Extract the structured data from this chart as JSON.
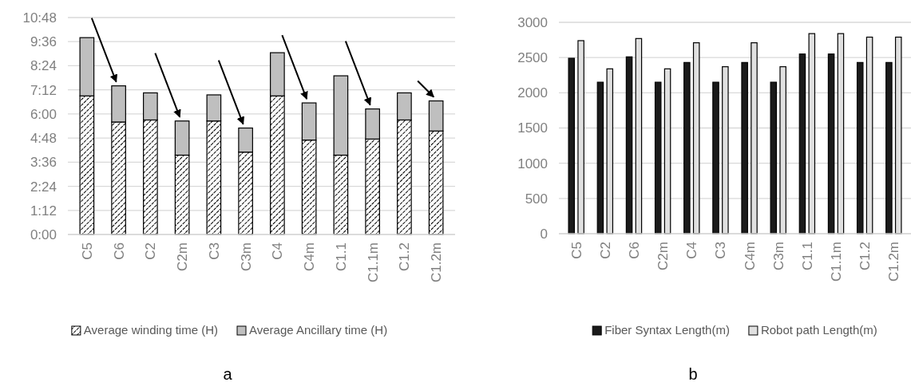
{
  "chart_data": [
    {
      "type": "bar",
      "stacked": true,
      "categories": [
        "C5",
        "C6",
        "C2",
        "C2m",
        "C3",
        "C3m",
        "C4",
        "C4m",
        "C1.1",
        "C1.1m",
        "C1.2",
        "C1.2m"
      ],
      "series": [
        {
          "name": "Average winding time (H)",
          "color": "#000000",
          "values": [
            6.9,
            5.6,
            5.7,
            3.95,
            5.65,
            4.1,
            6.9,
            4.7,
            3.95,
            4.75,
            5.7,
            5.15
          ]
        },
        {
          "name": "Average Ancillary time (H)",
          "color": "#bfbfbf",
          "values": [
            2.9,
            1.8,
            1.35,
            1.7,
            1.3,
            1.2,
            2.15,
            1.85,
            3.95,
            1.5,
            1.35,
            1.5
          ]
        }
      ],
      "ylim": [
        0,
        10.8
      ],
      "yticks": [
        {
          "value": 0,
          "label": "0:00"
        },
        {
          "value": 1.2,
          "label": "1:12"
        },
        {
          "value": 2.4,
          "label": "2:24"
        },
        {
          "value": 3.6,
          "label": "3:36"
        },
        {
          "value": 4.8,
          "label": "4:48"
        },
        {
          "value": 6,
          "label": "6:00"
        },
        {
          "value": 7.2,
          "label": "7:12"
        },
        {
          "value": 8.4,
          "label": "8:24"
        },
        {
          "value": 9.6,
          "label": "9:36"
        },
        {
          "value": 10.8,
          "label": "10:48"
        }
      ],
      "grid": "y",
      "legend": "bottom",
      "annotations": [
        "a"
      ]
    },
    {
      "type": "bar",
      "categories": [
        "C5",
        "C2",
        "C6",
        "C2m",
        "C4",
        "C3",
        "C4m",
        "C3m",
        "C1.1",
        "C1.1m",
        "C1.2",
        "C1.2m"
      ],
      "series": [
        {
          "name": "Fiber Syntax Length(m)",
          "color": "#1a1a1a",
          "values": [
            2490,
            2150,
            2510,
            2150,
            2430,
            2150,
            2430,
            2150,
            2550,
            2550,
            2430,
            2430
          ]
        },
        {
          "name": "Robot path Length(m)",
          "color": "#e0e0e0",
          "values": [
            2740,
            2340,
            2770,
            2340,
            2710,
            2370,
            2710,
            2370,
            2840,
            2840,
            2790,
            2790
          ]
        }
      ],
      "ylim": [
        0,
        3000
      ],
      "yticks": [
        0,
        500,
        1000,
        1500,
        2000,
        2500,
        3000
      ],
      "grid": "y",
      "legend": "bottom",
      "annotations": [
        "b"
      ]
    }
  ]
}
